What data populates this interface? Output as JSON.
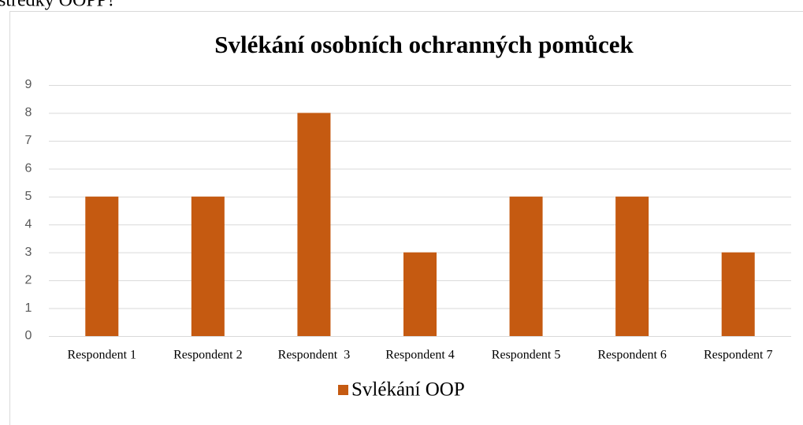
{
  "text_above": "středky OOPP?",
  "chart_data": {
    "type": "bar",
    "title": "Svlékání osobních ochranných pomůcek",
    "categories": [
      "Respondent 1",
      "Respondent 2",
      "Respondent  3",
      "Respondent 4",
      "Respondent 5",
      "Respondent 6",
      "Respondent 7"
    ],
    "series": [
      {
        "name": "Svlékání OOP",
        "color": "#c55a11",
        "values": [
          5,
          5,
          8,
          3,
          5,
          5,
          3
        ]
      }
    ],
    "ylim": [
      0,
      9
    ],
    "yticks": [
      0,
      1,
      2,
      3,
      4,
      5,
      6,
      7,
      8,
      9
    ],
    "grid": true,
    "legend": "bottom"
  }
}
